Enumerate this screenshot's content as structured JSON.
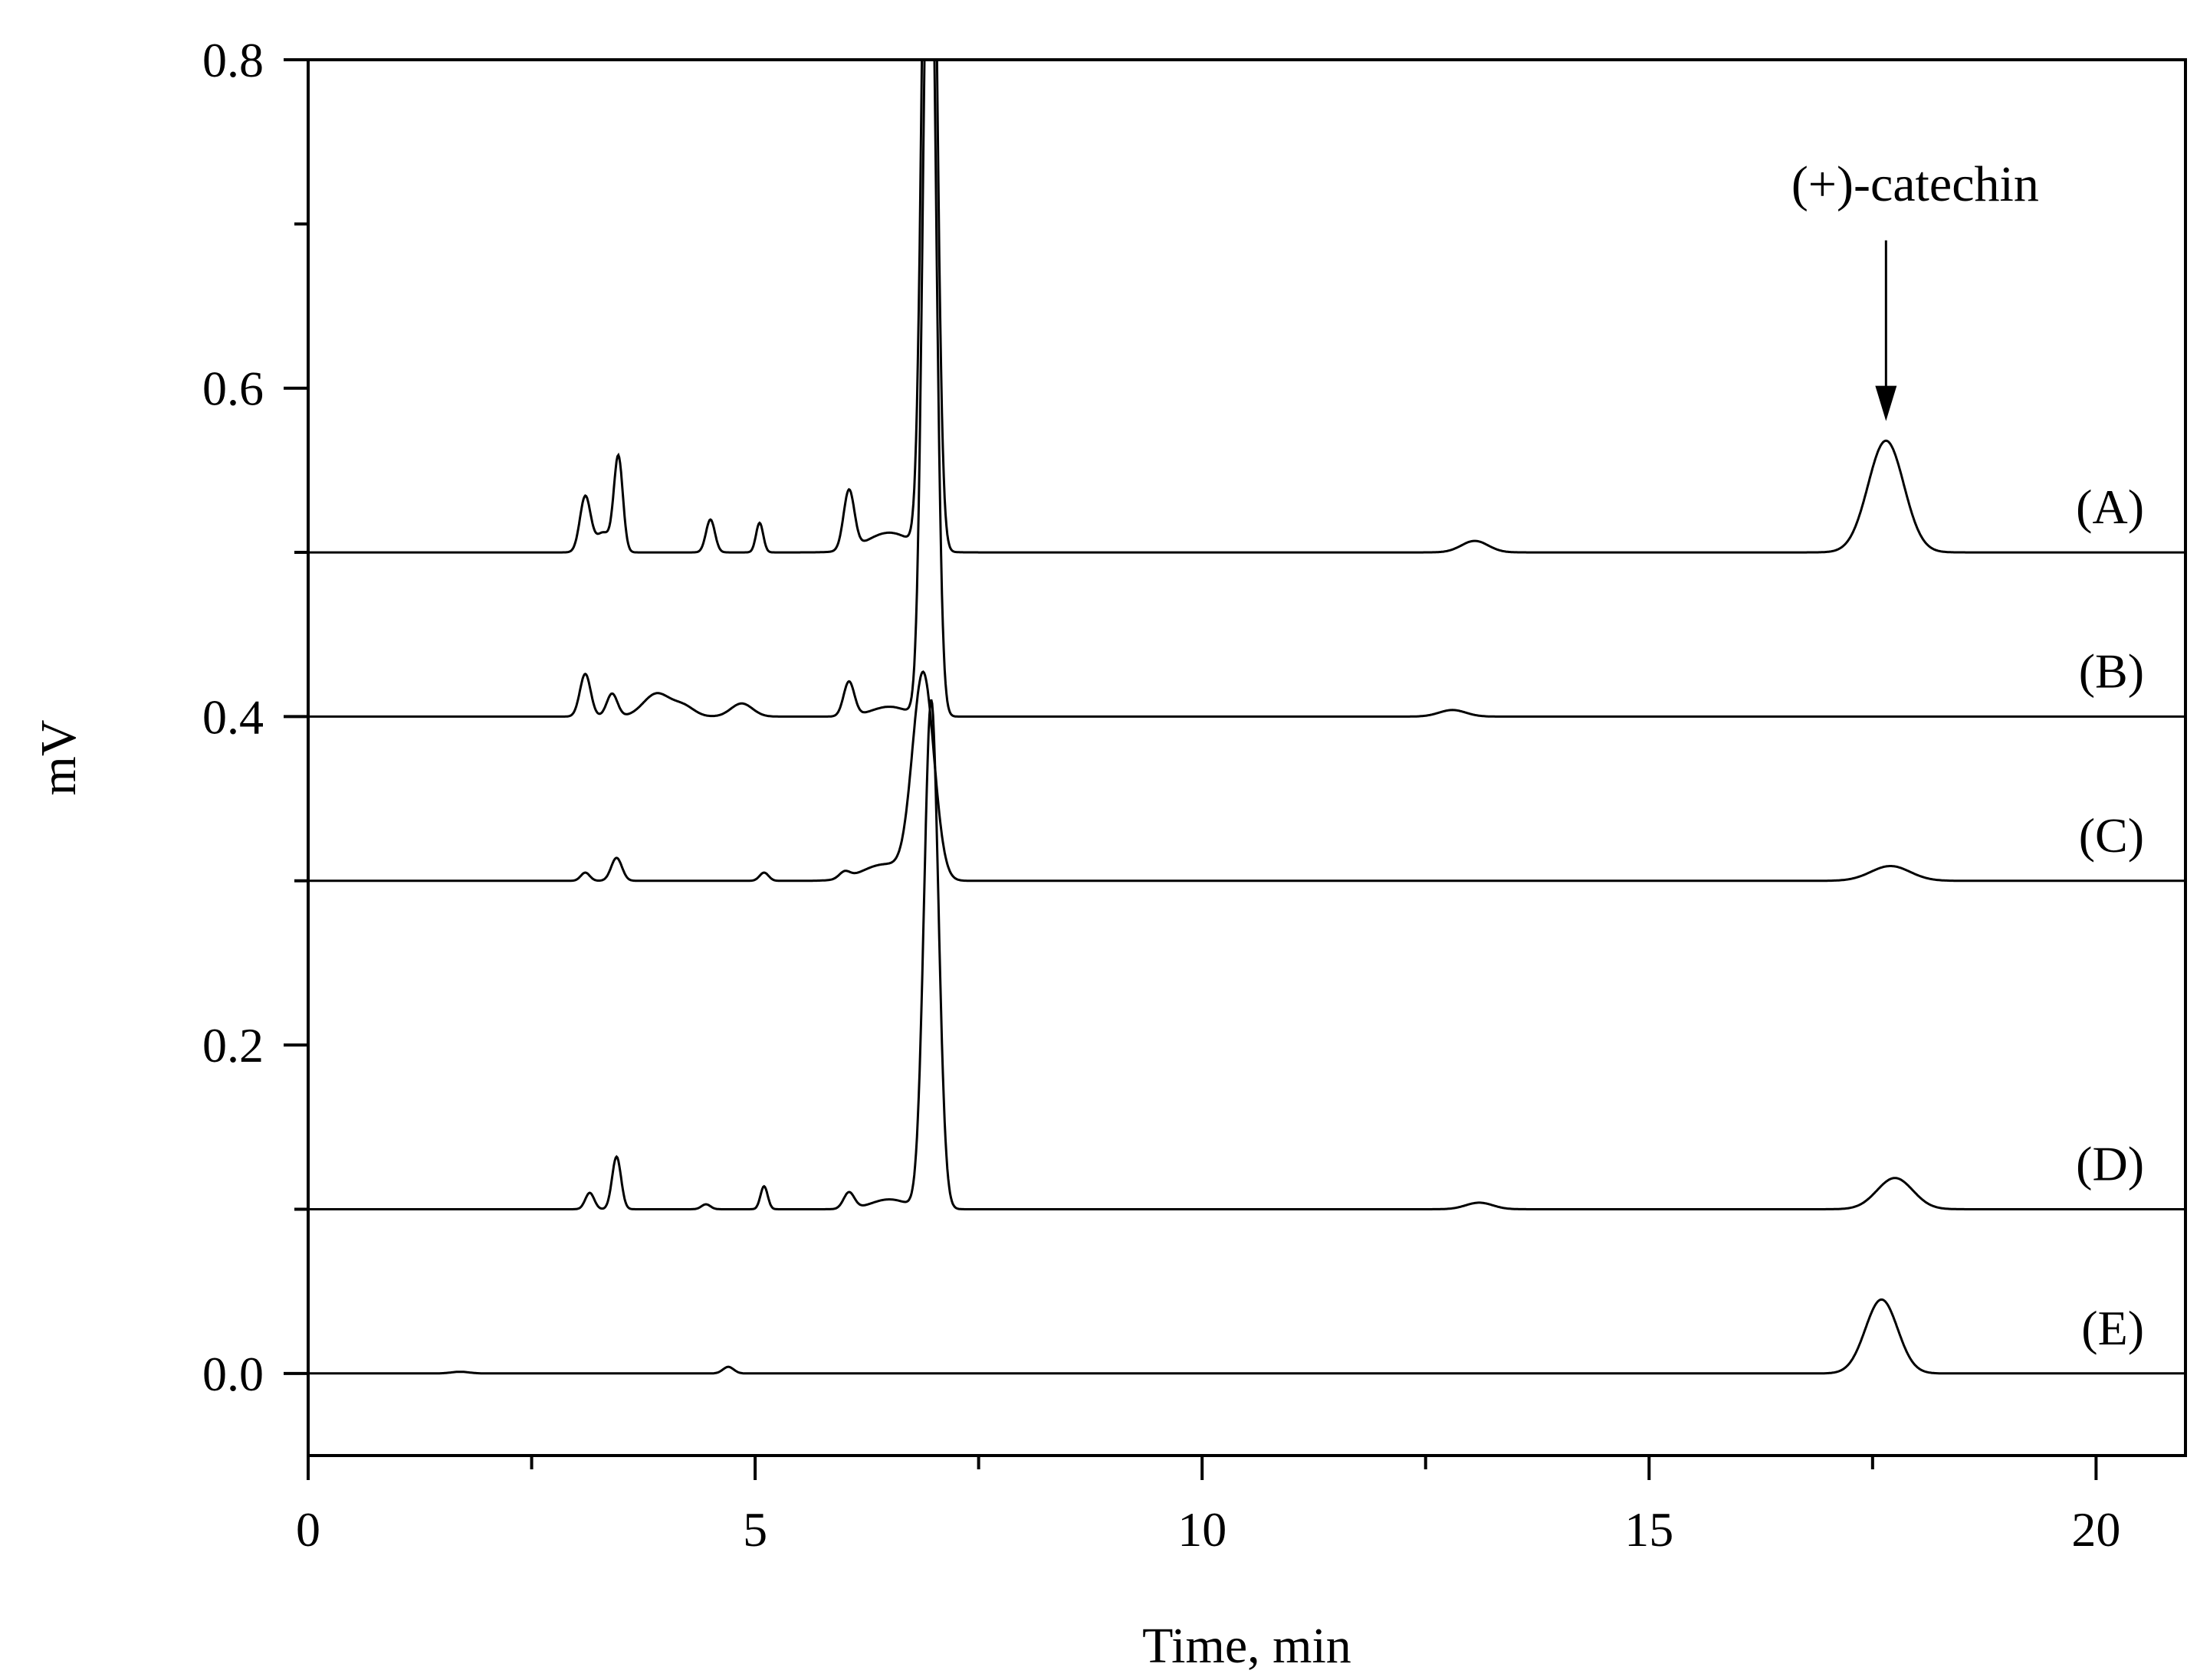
{
  "chart_data": {
    "type": "line",
    "title": "",
    "xlabel": "Time, min",
    "ylabel": "mV",
    "xlim": [
      0,
      21
    ],
    "ylim": [
      -0.05,
      0.8
    ],
    "x_ticks": [
      0,
      5,
      10,
      15,
      20
    ],
    "x_tick_labels": [
      "0",
      "5",
      "10",
      "15",
      "20"
    ],
    "y_ticks": [
      0.0,
      0.2,
      0.4,
      0.6,
      0.8
    ],
    "y_tick_labels": [
      "0.0",
      "0.2",
      "0.4",
      "0.6",
      "0.8"
    ],
    "grid": false,
    "series": [
      {
        "name": "(A)",
        "baseline": 0.5,
        "peaks": [
          {
            "t": 3.1,
            "h": 0.034,
            "w": 0.06
          },
          {
            "t": 3.47,
            "h": 0.058,
            "w": 0.05
          },
          {
            "t": 3.3,
            "h": 0.012,
            "w": 0.08
          },
          {
            "t": 4.5,
            "h": 0.02,
            "w": 0.05
          },
          {
            "t": 5.05,
            "h": 0.018,
            "w": 0.04
          },
          {
            "t": 6.05,
            "h": 0.036,
            "w": 0.06
          },
          {
            "t": 6.5,
            "h": 0.012,
            "w": 0.25
          },
          {
            "t": 6.95,
            "h": 0.62,
            "w": 0.07
          },
          {
            "t": 13.05,
            "h": 0.007,
            "w": 0.15
          },
          {
            "t": 17.65,
            "h": 0.068,
            "w": 0.2
          }
        ]
      },
      {
        "name": "(B)",
        "baseline": 0.4,
        "peaks": [
          {
            "t": 3.1,
            "h": 0.026,
            "w": 0.06
          },
          {
            "t": 3.4,
            "h": 0.014,
            "w": 0.06
          },
          {
            "t": 3.9,
            "h": 0.014,
            "w": 0.15
          },
          {
            "t": 4.2,
            "h": 0.006,
            "w": 0.12
          },
          {
            "t": 4.85,
            "h": 0.008,
            "w": 0.12
          },
          {
            "t": 6.05,
            "h": 0.021,
            "w": 0.06
          },
          {
            "t": 6.5,
            "h": 0.006,
            "w": 0.2
          },
          {
            "t": 6.95,
            "h": 0.55,
            "w": 0.07
          },
          {
            "t": 12.8,
            "h": 0.004,
            "w": 0.15
          }
        ]
      },
      {
        "name": "(C)",
        "baseline": 0.3,
        "peaks": [
          {
            "t": 3.1,
            "h": 0.005,
            "w": 0.05
          },
          {
            "t": 3.45,
            "h": 0.014,
            "w": 0.06
          },
          {
            "t": 5.1,
            "h": 0.005,
            "w": 0.05
          },
          {
            "t": 6.0,
            "h": 0.004,
            "w": 0.06
          },
          {
            "t": 6.45,
            "h": 0.01,
            "w": 0.25
          },
          {
            "t": 6.88,
            "h": 0.125,
            "w": 0.12
          },
          {
            "t": 17.7,
            "h": 0.009,
            "w": 0.22
          }
        ]
      },
      {
        "name": "(D)",
        "baseline": 0.1,
        "peaks": [
          {
            "t": 3.15,
            "h": 0.01,
            "w": 0.05
          },
          {
            "t": 3.45,
            "h": 0.032,
            "w": 0.05
          },
          {
            "t": 4.45,
            "h": 0.003,
            "w": 0.05
          },
          {
            "t": 5.1,
            "h": 0.014,
            "w": 0.04
          },
          {
            "t": 6.05,
            "h": 0.01,
            "w": 0.06
          },
          {
            "t": 6.5,
            "h": 0.006,
            "w": 0.2
          },
          {
            "t": 6.97,
            "h": 0.31,
            "w": 0.08
          },
          {
            "t": 13.1,
            "h": 0.004,
            "w": 0.15
          },
          {
            "t": 17.75,
            "h": 0.019,
            "w": 0.2
          }
        ]
      },
      {
        "name": "(E)",
        "baseline": 0.0,
        "peaks": [
          {
            "t": 1.7,
            "h": 0.001,
            "w": 0.1
          },
          {
            "t": 4.7,
            "h": 0.004,
            "w": 0.06
          },
          {
            "t": 17.6,
            "h": 0.045,
            "w": 0.18
          }
        ]
      }
    ],
    "annotation": {
      "text": "(+)-catechin",
      "x": 17.65,
      "arrow_from_y": 0.69,
      "arrow_to_y": 0.58
    }
  }
}
